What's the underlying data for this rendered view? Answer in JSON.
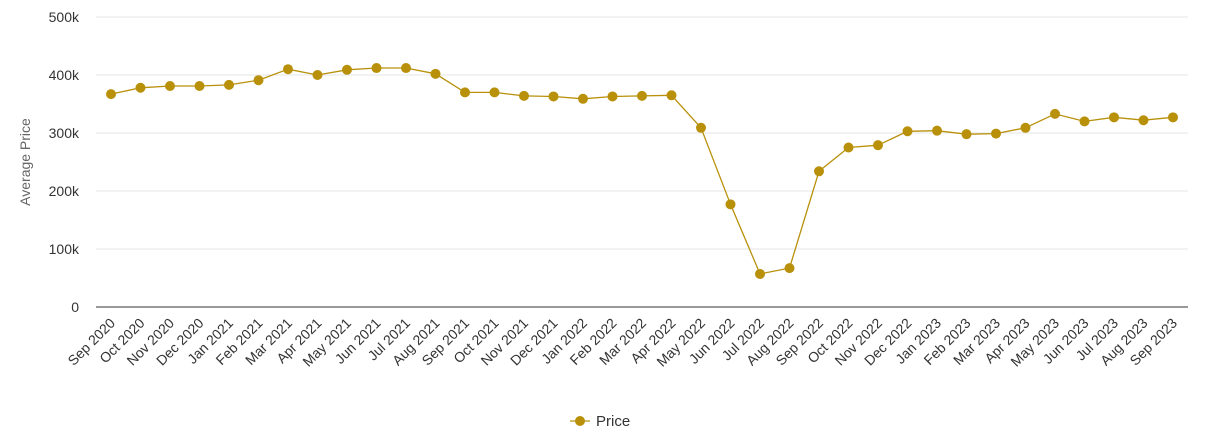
{
  "chart_data": {
    "type": "line",
    "title": "",
    "xlabel": "",
    "ylabel": "Average Price",
    "ylim": [
      0,
      500000
    ],
    "yticks": [
      {
        "value": 0,
        "label": "0"
      },
      {
        "value": 100000,
        "label": "100k"
      },
      {
        "value": 200000,
        "label": "200k"
      },
      {
        "value": 300000,
        "label": "300k"
      },
      {
        "value": 400000,
        "label": "400k"
      },
      {
        "value": 500000,
        "label": "500k"
      }
    ],
    "grid": true,
    "legend_position": "bottom-center",
    "color": "#b8900a",
    "categories": [
      "Sep 2020",
      "Oct 2020",
      "Nov 2020",
      "Dec 2020",
      "Jan 2021",
      "Feb 2021",
      "Mar 2021",
      "Apr 2021",
      "May 2021",
      "Jun 2021",
      "Jul 2021",
      "Aug 2021",
      "Sep 2021",
      "Oct 2021",
      "Nov 2021",
      "Dec 2021",
      "Jan 2022",
      "Feb 2022",
      "Mar 2022",
      "Apr 2022",
      "May 2022",
      "Jun 2022",
      "Jul 2022",
      "Aug 2022",
      "Sep 2022",
      "Oct 2022",
      "Nov 2022",
      "Dec 2022",
      "Jan 2023",
      "Feb 2023",
      "Mar 2023",
      "Apr 2023",
      "May 2023",
      "Jun 2023",
      "Jul 2023",
      "Aug 2023",
      "Sep 2023"
    ],
    "series": [
      {
        "name": "Price",
        "values": [
          367000,
          378000,
          381000,
          381000,
          383000,
          391000,
          410000,
          400000,
          409000,
          412000,
          412000,
          402000,
          370000,
          370000,
          364000,
          363000,
          359000,
          363000,
          364000,
          365000,
          309000,
          177000,
          57000,
          67000,
          234000,
          275000,
          279000,
          303000,
          304000,
          298000,
          299000,
          309000,
          333000,
          320000,
          327000,
          322000,
          327000
        ]
      }
    ]
  }
}
